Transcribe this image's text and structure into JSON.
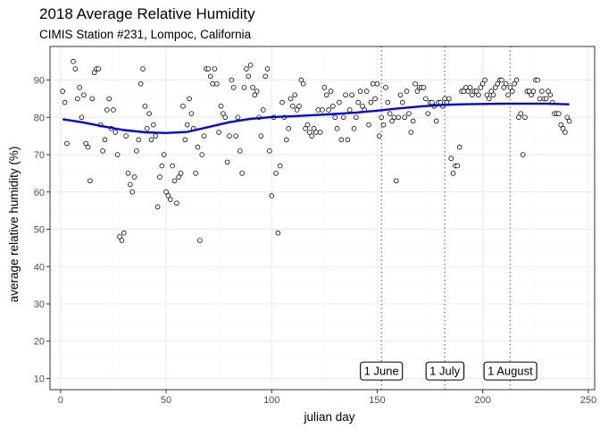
{
  "chart_data": {
    "type": "scatter",
    "title": "2018 Average Relative Humidity",
    "subtitle": "CIMIS Station #231, Lompoc, California",
    "xlabel": "julian day",
    "ylabel": "average relative humidity (%)",
    "xlim": [
      -5,
      253
    ],
    "ylim": [
      7,
      99
    ],
    "x_ticks": [
      0,
      50,
      100,
      150,
      200,
      250
    ],
    "y_ticks": [
      10,
      20,
      30,
      40,
      50,
      60,
      70,
      80,
      90
    ],
    "grid": true,
    "points": [
      [
        1,
        87
      ],
      [
        2,
        84
      ],
      [
        3,
        73
      ],
      [
        6,
        95
      ],
      [
        7,
        93
      ],
      [
        8,
        85
      ],
      [
        9,
        88
      ],
      [
        10,
        80
      ],
      [
        11,
        86
      ],
      [
        12,
        73
      ],
      [
        13,
        72
      ],
      [
        14,
        63
      ],
      [
        15,
        85
      ],
      [
        16,
        92
      ],
      [
        17,
        93
      ],
      [
        18,
        93
      ],
      [
        19,
        78
      ],
      [
        20,
        71
      ],
      [
        21,
        74
      ],
      [
        22,
        82
      ],
      [
        23,
        85
      ],
      [
        24,
        77
      ],
      [
        25,
        82
      ],
      [
        26,
        76
      ],
      [
        27,
        70
      ],
      [
        28,
        48
      ],
      [
        29,
        47
      ],
      [
        30,
        49
      ],
      [
        31,
        75
      ],
      [
        32,
        65
      ],
      [
        33,
        62
      ],
      [
        34,
        60
      ],
      [
        35,
        64
      ],
      [
        36,
        71
      ],
      [
        37,
        74
      ],
      [
        38,
        89
      ],
      [
        39,
        93
      ],
      [
        40,
        83
      ],
      [
        41,
        77
      ],
      [
        42,
        81
      ],
      [
        43,
        74
      ],
      [
        44,
        78
      ],
      [
        45,
        75
      ],
      [
        46,
        56
      ],
      [
        47,
        64
      ],
      [
        48,
        67
      ],
      [
        49,
        70
      ],
      [
        50,
        60
      ],
      [
        51,
        59
      ],
      [
        52,
        58
      ],
      [
        53,
        67
      ],
      [
        54,
        63
      ],
      [
        55,
        57
      ],
      [
        56,
        64
      ],
      [
        57,
        65
      ],
      [
        58,
        83
      ],
      [
        59,
        74
      ],
      [
        60,
        78
      ],
      [
        61,
        85
      ],
      [
        62,
        81
      ],
      [
        63,
        77
      ],
      [
        64,
        65
      ],
      [
        65,
        72
      ],
      [
        66,
        47
      ],
      [
        67,
        70
      ],
      [
        68,
        75
      ],
      [
        69,
        93
      ],
      [
        70,
        93
      ],
      [
        71,
        91
      ],
      [
        72,
        89
      ],
      [
        73,
        93
      ],
      [
        74,
        89
      ],
      [
        75,
        76
      ],
      [
        76,
        83
      ],
      [
        77,
        81
      ],
      [
        78,
        80
      ],
      [
        79,
        68
      ],
      [
        80,
        75
      ],
      [
        81,
        90
      ],
      [
        82,
        88
      ],
      [
        83,
        75
      ],
      [
        84,
        80
      ],
      [
        85,
        71
      ],
      [
        86,
        65
      ],
      [
        87,
        88
      ],
      [
        88,
        93
      ],
      [
        89,
        91
      ],
      [
        90,
        94
      ],
      [
        91,
        88
      ],
      [
        92,
        86
      ],
      [
        93,
        87
      ],
      [
        94,
        80
      ],
      [
        95,
        75
      ],
      [
        96,
        82
      ],
      [
        97,
        91
      ],
      [
        98,
        93
      ],
      [
        99,
        71
      ],
      [
        100,
        59
      ],
      [
        101,
        80
      ],
      [
        102,
        65
      ],
      [
        103,
        49
      ],
      [
        104,
        67
      ],
      [
        105,
        84
      ],
      [
        106,
        80
      ],
      [
        107,
        74
      ],
      [
        108,
        77
      ],
      [
        109,
        85
      ],
      [
        110,
        83
      ],
      [
        111,
        86
      ],
      [
        112,
        82
      ],
      [
        113,
        83
      ],
      [
        114,
        90
      ],
      [
        115,
        89
      ],
      [
        116,
        77
      ],
      [
        117,
        78
      ],
      [
        118,
        76
      ],
      [
        119,
        75
      ],
      [
        120,
        77
      ],
      [
        121,
        76
      ],
      [
        122,
        82
      ],
      [
        123,
        76
      ],
      [
        124,
        82
      ],
      [
        125,
        88
      ],
      [
        126,
        86
      ],
      [
        127,
        82
      ],
      [
        128,
        87
      ],
      [
        129,
        83
      ],
      [
        130,
        80
      ],
      [
        131,
        77
      ],
      [
        132,
        84
      ],
      [
        133,
        74
      ],
      [
        134,
        80
      ],
      [
        135,
        86
      ],
      [
        136,
        74
      ],
      [
        137,
        82
      ],
      [
        138,
        86
      ],
      [
        139,
        77
      ],
      [
        140,
        80
      ],
      [
        141,
        84
      ],
      [
        142,
        87
      ],
      [
        143,
        83
      ],
      [
        144,
        82
      ],
      [
        145,
        87
      ],
      [
        146,
        78
      ],
      [
        147,
        84
      ],
      [
        148,
        89
      ],
      [
        149,
        85
      ],
      [
        150,
        89
      ],
      [
        151,
        75
      ],
      [
        152,
        80
      ],
      [
        153,
        78
      ],
      [
        154,
        88
      ],
      [
        155,
        84
      ],
      [
        156,
        81
      ],
      [
        157,
        79
      ],
      [
        158,
        80
      ],
      [
        159,
        63
      ],
      [
        160,
        80
      ],
      [
        161,
        86
      ],
      [
        162,
        84
      ],
      [
        163,
        80
      ],
      [
        164,
        87
      ],
      [
        165,
        81
      ],
      [
        166,
        76
      ],
      [
        167,
        79
      ],
      [
        168,
        89
      ],
      [
        169,
        87
      ],
      [
        170,
        88
      ],
      [
        171,
        88
      ],
      [
        172,
        88
      ],
      [
        173,
        85
      ],
      [
        174,
        81
      ],
      [
        175,
        84
      ],
      [
        176,
        84
      ],
      [
        177,
        83
      ],
      [
        178,
        79
      ],
      [
        179,
        84
      ],
      [
        180,
        84
      ],
      [
        181,
        83
      ],
      [
        182,
        85
      ],
      [
        183,
        84
      ],
      [
        184,
        85
      ],
      [
        185,
        69
      ],
      [
        186,
        65
      ],
      [
        187,
        67
      ],
      [
        188,
        67
      ],
      [
        189,
        72
      ],
      [
        190,
        87
      ],
      [
        191,
        87
      ],
      [
        192,
        88
      ],
      [
        193,
        87
      ],
      [
        194,
        88
      ],
      [
        195,
        86
      ],
      [
        196,
        87
      ],
      [
        197,
        87
      ],
      [
        198,
        86
      ],
      [
        199,
        88
      ],
      [
        200,
        89
      ],
      [
        201,
        90
      ],
      [
        202,
        86
      ],
      [
        203,
        85
      ],
      [
        204,
        87
      ],
      [
        205,
        86
      ],
      [
        206,
        88
      ],
      [
        207,
        89
      ],
      [
        208,
        90
      ],
      [
        209,
        90
      ],
      [
        210,
        88
      ],
      [
        211,
        89
      ],
      [
        212,
        86
      ],
      [
        213,
        88
      ],
      [
        214,
        87
      ],
      [
        215,
        89
      ],
      [
        216,
        90
      ],
      [
        217,
        80
      ],
      [
        218,
        81
      ],
      [
        219,
        70
      ],
      [
        220,
        80
      ],
      [
        221,
        87
      ],
      [
        222,
        87
      ],
      [
        223,
        86
      ],
      [
        224,
        87
      ],
      [
        225,
        90
      ],
      [
        226,
        90
      ],
      [
        227,
        85
      ],
      [
        228,
        87
      ],
      [
        229,
        85
      ],
      [
        230,
        85
      ],
      [
        231,
        87
      ],
      [
        232,
        86
      ],
      [
        233,
        84
      ],
      [
        234,
        81
      ],
      [
        235,
        81
      ],
      [
        236,
        81
      ],
      [
        237,
        78
      ],
      [
        238,
        77
      ],
      [
        239,
        76
      ],
      [
        240,
        80
      ],
      [
        241,
        79
      ]
    ],
    "smooth_line": {
      "color": "#0000ff",
      "x": [
        1,
        10,
        20,
        30,
        40,
        50,
        60,
        70,
        80,
        90,
        100,
        110,
        120,
        130,
        140,
        150,
        160,
        170,
        180,
        190,
        200,
        210,
        220,
        230,
        241
      ],
      "y": [
        79.5,
        78.7,
        77.6,
        76.6,
        76.0,
        75.8,
        76.1,
        77.4,
        78.7,
        79.6,
        80.1,
        80.3,
        80.6,
        80.9,
        81.3,
        81.8,
        82.4,
        82.9,
        83.3,
        83.5,
        83.6,
        83.7,
        83.7,
        83.7,
        83.5
      ]
    },
    "annotations": [
      {
        "x": 152,
        "label": "1 June"
      },
      {
        "x": 182,
        "label": "1 July"
      },
      {
        "x": 213,
        "label": "1 August"
      }
    ],
    "annotation_label_y": 12,
    "colors": {
      "points": "#000000",
      "smooth": "#0000ff",
      "grid_major": "#ebebeb",
      "grid_minor": "#f5f5f5",
      "panel_border": "#333333",
      "vline": "#808080"
    }
  }
}
